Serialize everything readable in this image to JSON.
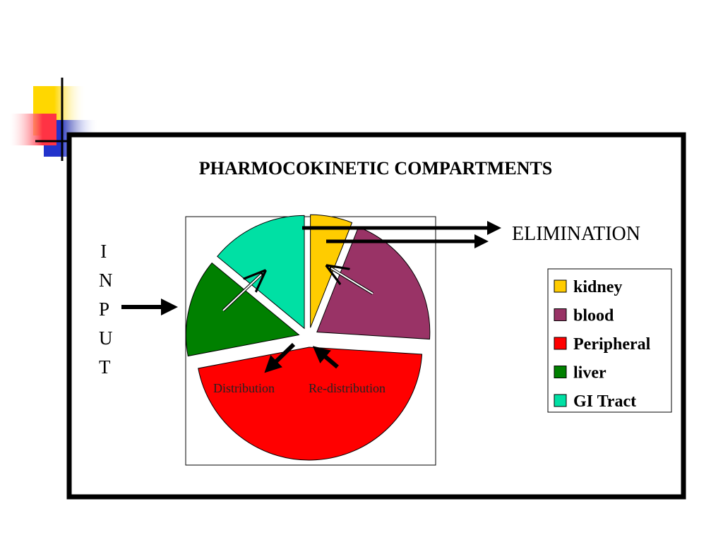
{
  "chart_data": {
    "type": "pie",
    "title": "PHARMOCOKINETIC COMPARTMENTS",
    "categories": [
      "kidney",
      "blood",
      "Peripheral",
      "liver",
      "GI Tract"
    ],
    "values": [
      6,
      20,
      46,
      14,
      14
    ],
    "colors": [
      "#ffcc00",
      "#993366",
      "#ff0000",
      "#008000",
      "#00e0a4"
    ],
    "legend": "right",
    "annotations": {
      "elimination": "ELIMINATION",
      "input": "INPUT",
      "distribution": "Distribution",
      "redistribution": "Re-distribution"
    }
  }
}
